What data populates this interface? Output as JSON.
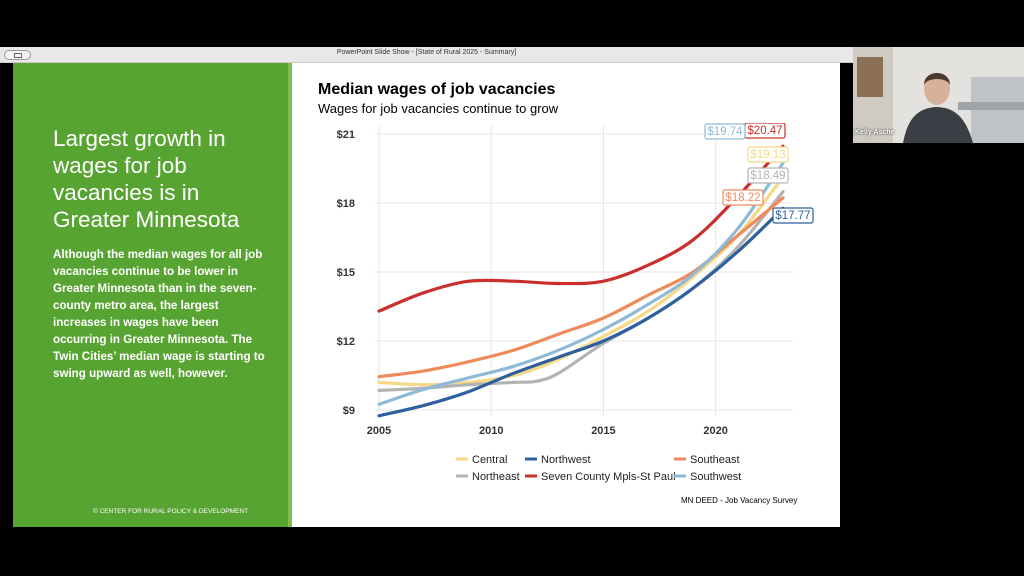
{
  "window": {
    "title": "PowerPoint Slide Show - [State of Rural 2025 - Summary]"
  },
  "slide": {
    "heading": "Largest growth in wages for job vacancies is in Greater Minnesota",
    "body": "Although the median wages for all job vacancies continue to be lower in Greater Minnesota than in the seven-county metro area, the largest increases in wages have been occurring in Greater Minnesota. The Twin Cities’ median wage is starting to swing upward as well, however.",
    "copyright": "© CENTER FOR RURAL POLICY & DEVELOPMENT",
    "source": "MN DEED - Job Vacancy Survey"
  },
  "participant": {
    "name": "Kelly Asche"
  },
  "chart_data": {
    "type": "line",
    "title": "Median wages of job vacancies",
    "subtitle": "Wages for job vacancies continue to grow",
    "xlabel": "",
    "ylabel": "",
    "xlim": [
      2005,
      2023
    ],
    "ylim": [
      9,
      21
    ],
    "xticks": [
      2005,
      2010,
      2015,
      2020
    ],
    "yticks": [
      9,
      12,
      15,
      18,
      21
    ],
    "ytick_labels": [
      "$9",
      "$12",
      "$15",
      "$18",
      "$21"
    ],
    "grid": true,
    "legend": "bottom",
    "series": [
      {
        "name": "Central",
        "color": "#f6d887",
        "x": [
          2005,
          2007,
          2009,
          2011,
          2013,
          2015,
          2017,
          2019,
          2021,
          2023
        ],
        "y": [
          10.2,
          10.1,
          10.2,
          10.5,
          11.2,
          12.2,
          13.3,
          14.8,
          16.6,
          19.13
        ],
        "end_label": "$19.13"
      },
      {
        "name": "Northeast",
        "color": "#b3b3b3",
        "x": [
          2005,
          2007,
          2009,
          2011,
          2012,
          2013,
          2015,
          2017,
          2019,
          2021,
          2023
        ],
        "y": [
          9.85,
          9.95,
          10.1,
          10.2,
          10.25,
          10.6,
          11.9,
          13.0,
          14.3,
          16.1,
          18.49
        ],
        "end_label": "$18.49"
      },
      {
        "name": "Northwest",
        "color": "#2e5f9e",
        "x": [
          2005,
          2007,
          2009,
          2011,
          2013,
          2015,
          2017,
          2019,
          2021,
          2023
        ],
        "y": [
          8.75,
          9.2,
          9.8,
          10.6,
          11.3,
          12.0,
          13.0,
          14.3,
          15.9,
          17.77
        ],
        "end_label": "$17.77"
      },
      {
        "name": "Seven County Mpls-St Paul",
        "color": "#c9302c",
        "x": [
          2005,
          2007,
          2009,
          2011,
          2013,
          2015,
          2017,
          2019,
          2021,
          2023
        ],
        "y": [
          13.3,
          14.1,
          14.6,
          14.6,
          14.5,
          14.6,
          15.3,
          16.4,
          18.3,
          20.47
        ],
        "end_label": "$20.47"
      },
      {
        "name": "Southeast",
        "color": "#ee8a5c",
        "x": [
          2005,
          2007,
          2009,
          2011,
          2013,
          2015,
          2017,
          2019,
          2021,
          2023
        ],
        "y": [
          10.45,
          10.7,
          11.1,
          11.6,
          12.3,
          13.0,
          14.0,
          15.0,
          16.6,
          18.22
        ],
        "end_label": "$18.22"
      },
      {
        "name": "Southwest",
        "color": "#8ebad8",
        "x": [
          2005,
          2007,
          2009,
          2011,
          2013,
          2015,
          2017,
          2019,
          2021,
          2023
        ],
        "y": [
          9.25,
          9.9,
          10.4,
          10.9,
          11.6,
          12.5,
          13.6,
          14.9,
          16.9,
          19.74
        ],
        "end_label": "$19.74"
      }
    ],
    "legend_order": [
      "Central",
      "Northwest",
      "Southeast",
      "Northeast",
      "Seven County Mpls-St Paul",
      "Southwest"
    ]
  }
}
